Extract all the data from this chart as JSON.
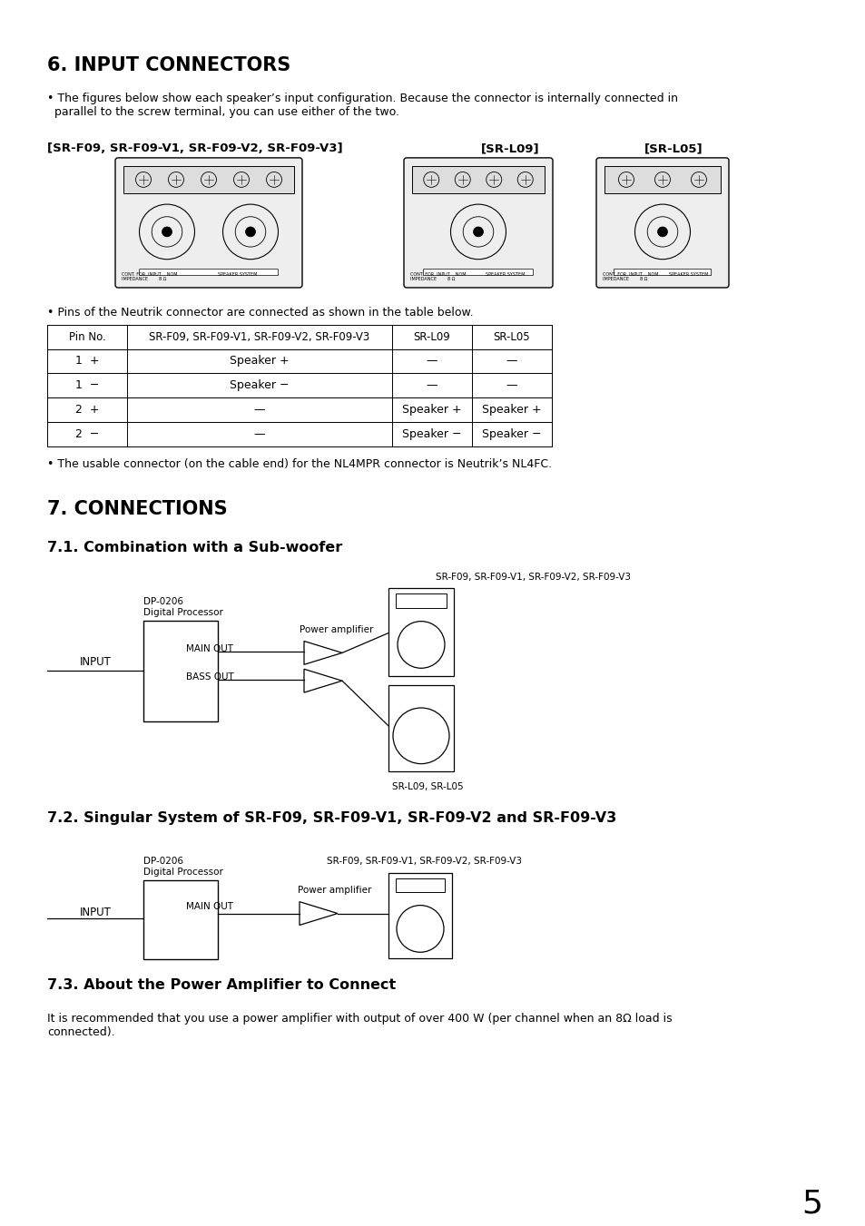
{
  "bg_color": "#ffffff",
  "page_number": "5",
  "section6_title": "6. INPUT CONNECTORS",
  "section6_bullet1": "• The figures below show each speaker’s input configuration. Because the connector is internally connected in\n  parallel to the screw terminal, you can use either of the two.",
  "label_srf09": "[SR-F09, SR-F09-V1, SR-F09-V2, SR-F09-V3]",
  "label_srl09": "[SR-L09]",
  "label_srl05": "[SR-L05]",
  "table_intro": "• Pins of the Neutrik connector are connected as shown in the table below.",
  "table_headers": [
    "Pin No.",
    "SR-F09, SR-F09-V1, SR-F09-V2, SR-F09-V3",
    "SR-L09",
    "SR-L05"
  ],
  "table_rows": [
    [
      "1  +",
      "Speaker +",
      "—",
      "—"
    ],
    [
      "1  −",
      "Speaker −",
      "—",
      "—"
    ],
    [
      "2  +",
      "—",
      "Speaker +",
      "Speaker +"
    ],
    [
      "2  −",
      "—",
      "Speaker −",
      "Speaker −"
    ]
  ],
  "section6_bullet2": "• The usable connector (on the cable end) for the NL4MPR connector is Neutrik’s NL4FC.",
  "section7_title": "7. CONNECTIONS",
  "section71_title": "7.1. Combination with a Sub-woofer",
  "diagram1_label_top": "SR-F09, SR-F09-V1, SR-F09-V2, SR-F09-V3",
  "diagram1_dp_line1": "DP-0206",
  "diagram1_dp_line2": "Digital Processor",
  "diagram1_power_amp": "Power amplifier",
  "diagram1_input": "INPUT",
  "diagram1_main_out": "MAIN OUT",
  "diagram1_bass_out": "BASS OUT",
  "diagram1_bottom_label": "SR-L09, SR-L05",
  "section72_title": "7.2. Singular System of SR-F09, SR-F09-V1, SR-F09-V2 and SR-F09-V3",
  "diagram2_dp_line1": "DP-0206",
  "diagram2_dp_line2": "Digital Processor",
  "diagram2_label_top": "SR-F09, SR-F09-V1, SR-F09-V2, SR-F09-V3",
  "diagram2_power_amp": "Power amplifier",
  "diagram2_input": "INPUT",
  "diagram2_main_out": "MAIN OUT",
  "section73_title": "7.3. About the Power Amplifier to Connect",
  "section73_body": "It is recommended that you use a power amplifier with output of over 400 W (per channel when an 8Ω load is\nconnected).",
  "font_color": "#000000",
  "line_color": "#000000"
}
